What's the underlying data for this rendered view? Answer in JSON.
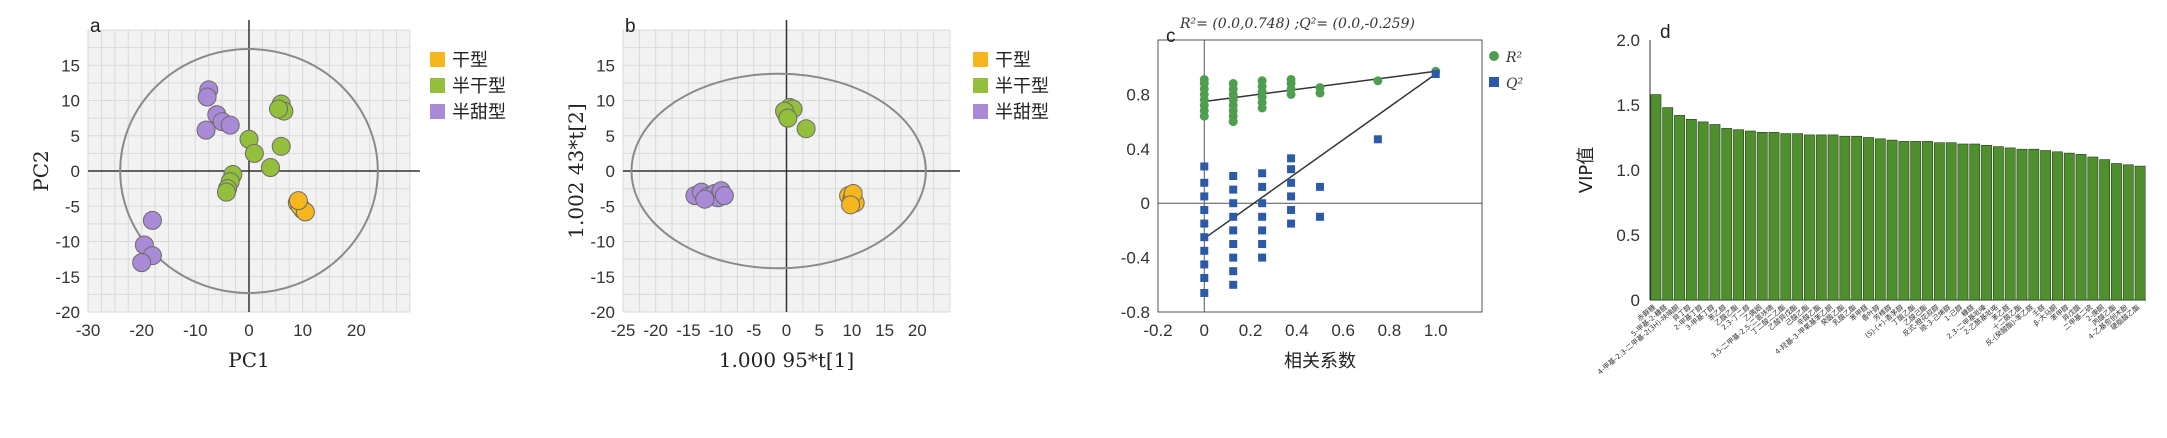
{
  "colors": {
    "dry": "#f5b61e",
    "semidry": "#93bf3d",
    "semisweet": "#a98ad6",
    "r2": "#4f9e4f",
    "q2": "#2c5aa8",
    "vip_bar": "#4f8f2e",
    "grid": "#d9d9d9",
    "plotbg": "#f2f2f2"
  },
  "chart_data": [
    {
      "panel": "a",
      "type": "scatter",
      "xlabel": "PC1",
      "ylabel": "PC2",
      "xlim": [
        -30,
        30
      ],
      "ylim": [
        -20,
        20
      ],
      "xticks": [
        -30,
        -20,
        -10,
        0,
        10,
        20
      ],
      "yticks": [
        15,
        10,
        5,
        0,
        -5,
        -10,
        -15,
        -20
      ],
      "grid": true,
      "ellipse": {
        "cx": 0,
        "cy": 0,
        "rx": 24,
        "ry": 17.3
      },
      "legend_position": "top-right",
      "series": [
        {
          "name": "干型",
          "color_key": "dry",
          "points": [
            [
              9,
              -4.5
            ],
            [
              10,
              -5.5
            ],
            [
              9.5,
              -5
            ],
            [
              10.5,
              -5.8
            ],
            [
              9.2,
              -4.2
            ]
          ]
        },
        {
          "name": "半干型",
          "color_key": "semidry",
          "points": [
            [
              6,
              9.5
            ],
            [
              6.5,
              8.5
            ],
            [
              5.5,
              8.8
            ],
            [
              6,
              3.5
            ],
            [
              0,
              4.5
            ],
            [
              1,
              2.5
            ],
            [
              4,
              0.5
            ],
            [
              -3,
              -0.5
            ],
            [
              -3.5,
              -1.5
            ],
            [
              -4,
              -2.5
            ],
            [
              -4.2,
              -3
            ]
          ]
        },
        {
          "name": "半甜型",
          "color_key": "semisweet",
          "points": [
            [
              -7.5,
              11.5
            ],
            [
              -7.8,
              10.5
            ],
            [
              -6,
              8
            ],
            [
              -5,
              7
            ],
            [
              -3.5,
              6.5
            ],
            [
              -8,
              5.8
            ],
            [
              -18,
              -7
            ],
            [
              -19.5,
              -10.5
            ],
            [
              -18,
              -12
            ],
            [
              -20,
              -13
            ]
          ]
        }
      ]
    },
    {
      "panel": "b",
      "type": "scatter",
      "xlabel": "1.000 95*t[1]",
      "ylabel": "1.002 43*t[2]",
      "xlim": [
        -25,
        25
      ],
      "ylim": [
        -20,
        20
      ],
      "xticks": [
        -25,
        -20,
        -15,
        -10,
        -5,
        0,
        5,
        10,
        15,
        20
      ],
      "yticks": [
        15,
        10,
        5,
        0,
        -5,
        -10,
        -15,
        -20
      ],
      "grid": true,
      "ellipse": {
        "cx": -1.2,
        "cy": 0,
        "rx": 22.5,
        "ry": 13.8
      },
      "legend_position": "top-right",
      "series": [
        {
          "name": "干型",
          "color_key": "dry",
          "points": [
            [
              9.5,
              -3.5
            ],
            [
              10,
              -4
            ],
            [
              10.5,
              -4.5
            ],
            [
              10.2,
              -3.2
            ],
            [
              9.8,
              -4.8
            ]
          ]
        },
        {
          "name": "半干型",
          "color_key": "semidry",
          "points": [
            [
              0,
              8
            ],
            [
              0.5,
              9
            ],
            [
              1,
              8.8
            ],
            [
              -0.3,
              8.5
            ],
            [
              0.2,
              7.5
            ],
            [
              3,
              6
            ]
          ]
        },
        {
          "name": "半甜型",
          "color_key": "semisweet",
          "points": [
            [
              -14,
              -3.5
            ],
            [
              -13,
              -3
            ],
            [
              -12,
              -3.6
            ],
            [
              -11,
              -3.2
            ],
            [
              -10.5,
              -3.8
            ],
            [
              -10,
              -2.8
            ],
            [
              -9.5,
              -3.5
            ],
            [
              -12.5,
              -4
            ]
          ]
        }
      ]
    },
    {
      "panel": "c",
      "type": "scatter",
      "annotation": "R²= (0.0,0.748) ;Q²= (0.0,-0.259)",
      "xlabel": "相关系数",
      "ylabel": "",
      "xlim": [
        -0.2,
        1.2
      ],
      "ylim": [
        -0.8,
        1.2
      ],
      "xticks": [
        -0.2,
        0,
        0.2,
        0.4,
        0.6,
        0.8,
        1.0
      ],
      "yticks": [
        0.8,
        0.4,
        0,
        -0.4,
        -0.8
      ],
      "grid": false,
      "legend_position": "top-right",
      "series": [
        {
          "name": "R²",
          "color_key": "r2",
          "marker": "circle",
          "points": [
            [
              0,
              0.64
            ],
            [
              0,
              0.68
            ],
            [
              0,
              0.72
            ],
            [
              0,
              0.76
            ],
            [
              0,
              0.8
            ],
            [
              0,
              0.84
            ],
            [
              0,
              0.88
            ],
            [
              0,
              0.91
            ],
            [
              0.125,
              0.6
            ],
            [
              0.125,
              0.64
            ],
            [
              0.125,
              0.68
            ],
            [
              0.125,
              0.72
            ],
            [
              0.125,
              0.76
            ],
            [
              0.125,
              0.8
            ],
            [
              0.125,
              0.84
            ],
            [
              0.125,
              0.88
            ],
            [
              0.25,
              0.7
            ],
            [
              0.25,
              0.74
            ],
            [
              0.25,
              0.78
            ],
            [
              0.25,
              0.82
            ],
            [
              0.25,
              0.86
            ],
            [
              0.25,
              0.9
            ],
            [
              0.375,
              0.8
            ],
            [
              0.375,
              0.84
            ],
            [
              0.375,
              0.88
            ],
            [
              0.375,
              0.91
            ],
            [
              0.5,
              0.81
            ],
            [
              0.5,
              0.85
            ],
            [
              0.75,
              0.9
            ],
            [
              1.0,
              0.97
            ]
          ],
          "fit_line": [
            [
              0,
              0.748
            ],
            [
              1.0,
              0.97
            ]
          ]
        },
        {
          "name": "Q²",
          "color_key": "q2",
          "marker": "square",
          "points": [
            [
              0,
              -0.66
            ],
            [
              0,
              -0.55
            ],
            [
              0,
              -0.45
            ],
            [
              0,
              -0.35
            ],
            [
              0,
              -0.25
            ],
            [
              0,
              -0.15
            ],
            [
              0,
              -0.05
            ],
            [
              0,
              0.05
            ],
            [
              0,
              0.15
            ],
            [
              0,
              0.27
            ],
            [
              0.125,
              -0.6
            ],
            [
              0.125,
              -0.5
            ],
            [
              0.125,
              -0.4
            ],
            [
              0.125,
              -0.3
            ],
            [
              0.125,
              -0.2
            ],
            [
              0.125,
              -0.1
            ],
            [
              0.125,
              0.0
            ],
            [
              0.125,
              0.1
            ],
            [
              0.125,
              0.2
            ],
            [
              0.25,
              -0.4
            ],
            [
              0.25,
              -0.3
            ],
            [
              0.25,
              -0.2
            ],
            [
              0.25,
              -0.1
            ],
            [
              0.25,
              0.0
            ],
            [
              0.25,
              0.12
            ],
            [
              0.25,
              0.22
            ],
            [
              0.375,
              -0.15
            ],
            [
              0.375,
              -0.05
            ],
            [
              0.375,
              0.05
            ],
            [
              0.375,
              0.15
            ],
            [
              0.375,
              0.25
            ],
            [
              0.375,
              0.33
            ],
            [
              0.5,
              -0.1
            ],
            [
              0.5,
              0.12
            ],
            [
              0.75,
              0.47
            ],
            [
              1.0,
              0.95
            ]
          ],
          "fit_line": [
            [
              0,
              -0.259
            ],
            [
              1.0,
              0.95
            ]
          ]
        }
      ]
    },
    {
      "panel": "d",
      "type": "bar",
      "ylabel": "VIP值",
      "ylim": [
        0,
        2.0
      ],
      "yticks": [
        2.0,
        1.5,
        1.0,
        0.5,
        0
      ],
      "grid": false,
      "categories": [
        "赤藓糖",
        "5-甲基-2-糠醛",
        "4-甲基-2,3-二甲基-2(3H)-呋喃酮",
        "异丁醇",
        "2-甲基丁醇",
        "3-甲基丁醇",
        "苯乙醇",
        "乙酸乙酯",
        "2,3-丁二醇",
        "乙偶姻",
        "3,5-二甲基-2,5-二氢呋喃",
        "丁二酸二乙酯",
        "乙酸异戊酯",
        "己酸乙酯",
        "辛酸乙酯",
        "4-羟基-3-甲氧基苯乙酮",
        "癸酸乙酯",
        "乳酸乙酯",
        "苯甲醛",
        "香叶醇",
        "芳樟醇",
        "(S)-(+)-香茅醇",
        "丁酸乙酯",
        "乙酸己酯",
        "反式-橙花叔醇",
        "顺-3-己烯醇",
        "1-己醇",
        "糠醛",
        "2,3-二甲基吡嗪",
        "2-乙酰基吡咯",
        "苯乙醛",
        "十二酸乙酯",
        "反-(癸酸酯)-苯乙醛",
        "壬醛",
        "β-大马酮",
        "苯甲醇",
        "异戊酸",
        "二甲基二硫",
        "2-庚酮",
        "丙酸乙酯",
        "4-乙基愈创木酚",
        "硬脂酸乙酯"
      ],
      "values": [
        1.58,
        1.48,
        1.42,
        1.39,
        1.37,
        1.35,
        1.32,
        1.31,
        1.3,
        1.29,
        1.29,
        1.28,
        1.28,
        1.27,
        1.27,
        1.27,
        1.26,
        1.26,
        1.25,
        1.24,
        1.23,
        1.22,
        1.22,
        1.22,
        1.21,
        1.21,
        1.2,
        1.2,
        1.19,
        1.18,
        1.17,
        1.16,
        1.16,
        1.15,
        1.14,
        1.13,
        1.12,
        1.1,
        1.08,
        1.05,
        1.04,
        1.03
      ]
    }
  ]
}
